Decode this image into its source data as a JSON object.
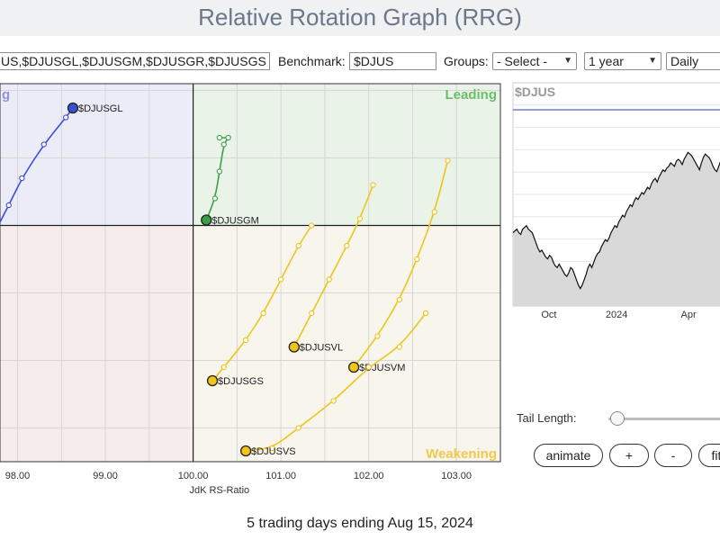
{
  "title": "Relative Rotation Graph (RRG)",
  "controls": {
    "symbols_value": "US,$DJUSGL,$DJUSGM,$DJUSGR,$DJUSGS",
    "benchmark_label": "Benchmark:",
    "benchmark_value": "$DJUS",
    "groups_label": "Groups:",
    "groups_value": "- Select -",
    "period_value": "1 year",
    "frequency_value": "Daily"
  },
  "chart_data": {
    "type": "scatter",
    "xlabel": "JdK RS-Ratio",
    "x_ticks": [
      "98.00",
      "99.00",
      "100.00",
      "101.00",
      "102.00",
      "103.00"
    ],
    "xlim": [
      97.8,
      103.5
    ],
    "ylim": [
      98.25,
      101.05
    ],
    "quadrants": {
      "leading": "Leading",
      "weakening": "Weakening",
      "lagging_partial": "g"
    },
    "colors": {
      "leading": "#3fa34d",
      "lagging": "#4a5ad8",
      "weakening": "#f0c419",
      "leading_bg": "#e9f3e8",
      "lagging_bg": "#ececf8",
      "weakening_bg": "#f7f5ec",
      "improving_bg": "#f7ecec"
    },
    "series": [
      {
        "name": "$DJUSGL",
        "color": "#3b4fd6",
        "x": [
          97.7,
          97.9,
          98.05,
          98.3,
          98.55,
          98.63
        ],
        "y": [
          99.9,
          100.15,
          100.35,
          100.6,
          100.8,
          100.87
        ]
      },
      {
        "name": "$DJUSGM",
        "color": "#3aa046",
        "x": [
          100.3,
          100.4,
          100.35,
          100.3,
          100.25,
          100.15
        ],
        "y": [
          100.65,
          100.65,
          100.6,
          100.4,
          100.2,
          100.04
        ]
      },
      {
        "name": "$DJUSGS",
        "color": "#f0c419",
        "x": [
          101.35,
          101.2,
          101.0,
          100.8,
          100.6,
          100.35,
          100.22
        ],
        "y": [
          100.0,
          99.85,
          99.6,
          99.35,
          99.15,
          98.95,
          98.85
        ]
      },
      {
        "name": "$DJUSVL",
        "color": "#f0c419",
        "x": [
          102.05,
          101.9,
          101.75,
          101.55,
          101.35,
          101.15
        ],
        "y": [
          100.3,
          100.05,
          99.85,
          99.6,
          99.35,
          99.1
        ]
      },
      {
        "name": "$DJUSVM",
        "color": "#f0c419",
        "x": [
          102.9,
          102.75,
          102.55,
          102.35,
          102.1,
          101.83
        ],
        "y": [
          100.48,
          100.1,
          99.75,
          99.45,
          99.18,
          98.95
        ]
      },
      {
        "name": "$DJUSVS",
        "color": "#f0c419",
        "x": [
          102.65,
          102.35,
          102.0,
          101.6,
          101.2,
          100.9,
          100.6
        ],
        "y": [
          99.35,
          99.1,
          98.95,
          98.7,
          98.5,
          98.35,
          98.33
        ]
      }
    ]
  },
  "price_chart": {
    "symbol": "$DJUS",
    "x_ticks": [
      "Oct",
      "2024",
      "Apr"
    ],
    "ylim": [
      0,
      100
    ],
    "values": [
      42,
      43,
      44,
      42,
      41,
      44,
      45,
      46,
      44,
      43,
      42,
      39,
      36,
      33,
      31,
      32,
      30,
      28,
      27,
      29,
      28,
      25,
      23,
      22,
      24,
      22,
      20,
      18,
      17,
      19,
      22,
      21,
      18,
      15,
      12,
      10,
      12,
      15,
      18,
      22,
      24,
      22,
      25,
      28,
      30,
      31,
      34,
      36,
      38,
      37,
      39,
      42,
      44,
      46,
      45,
      48,
      50,
      52,
      51,
      54,
      56,
      58,
      57,
      60,
      62,
      61,
      63,
      65,
      64,
      66,
      68,
      67,
      70,
      72,
      73,
      71,
      74,
      76,
      78,
      77,
      79,
      80,
      82,
      81,
      80,
      83,
      84,
      83,
      81,
      84,
      86,
      88,
      87,
      86,
      84,
      82,
      80,
      78,
      82,
      85,
      87,
      86,
      85,
      83,
      80,
      78,
      77,
      80,
      83,
      86,
      88
    ]
  },
  "sidebar": {
    "tail_length_label": "Tail Length:",
    "tail_length_value": 0.08,
    "buttons": {
      "animate": "animate",
      "plus": "+",
      "minus": "-",
      "fit": "fit"
    }
  },
  "footer": "5 trading days ending Aug 15, 2024"
}
